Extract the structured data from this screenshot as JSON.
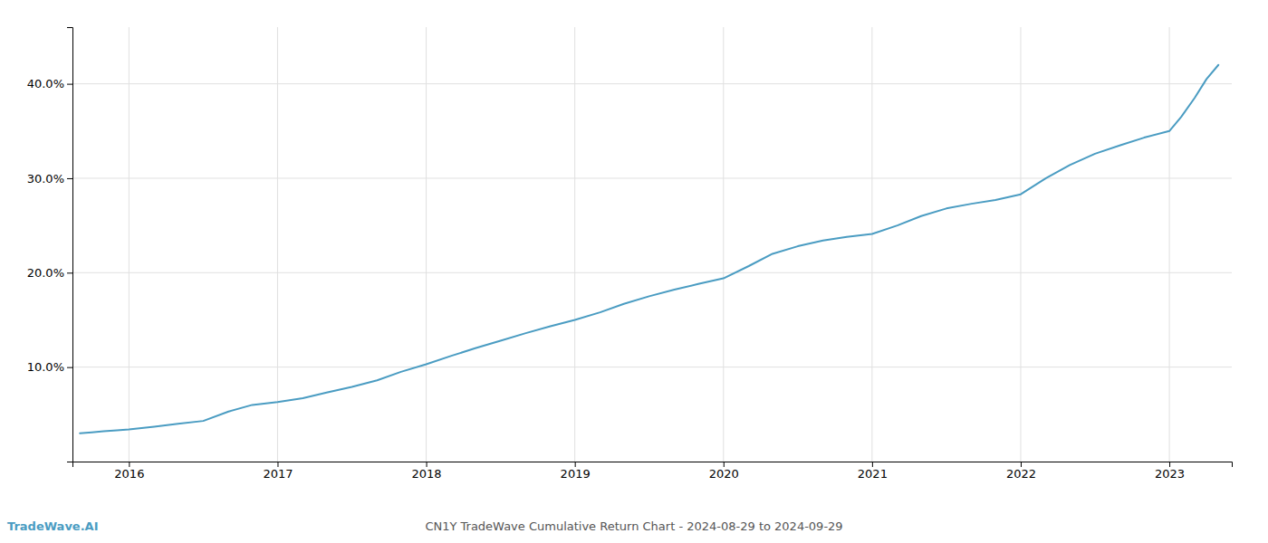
{
  "chart_data": {
    "type": "line",
    "title": "CN1Y TradeWave Cumulative Return Chart - 2024-08-29 to 2024-09-29",
    "annotations": [
      {
        "text": "TradeWave.AI",
        "color": "#4a9cc2"
      }
    ],
    "x": [
      2015.67,
      2015.75,
      2015.83,
      2015.92,
      2016.0,
      2016.17,
      2016.33,
      2016.5,
      2016.67,
      2016.83,
      2017.0,
      2017.17,
      2017.33,
      2017.5,
      2017.67,
      2017.83,
      2018.0,
      2018.17,
      2018.33,
      2018.5,
      2018.67,
      2018.83,
      2019.0,
      2019.17,
      2019.33,
      2019.5,
      2019.67,
      2019.83,
      2020.0,
      2020.17,
      2020.33,
      2020.5,
      2020.67,
      2020.83,
      2021.0,
      2021.17,
      2021.33,
      2021.5,
      2021.67,
      2021.83,
      2022.0,
      2022.17,
      2022.33,
      2022.5,
      2022.67,
      2022.83,
      2023.0,
      2023.08,
      2023.17,
      2023.25,
      2023.33
    ],
    "values": [
      0.03,
      0.031,
      0.032,
      0.033,
      0.034,
      0.037,
      0.04,
      0.043,
      0.053,
      0.06,
      0.063,
      0.067,
      0.073,
      0.079,
      0.086,
      0.095,
      0.103,
      0.112,
      0.12,
      0.128,
      0.136,
      0.143,
      0.15,
      0.158,
      0.167,
      0.175,
      0.182,
      0.188,
      0.194,
      0.207,
      0.22,
      0.228,
      0.234,
      0.238,
      0.241,
      0.25,
      0.26,
      0.268,
      0.273,
      0.277,
      0.283,
      0.3,
      0.314,
      0.326,
      0.335,
      0.343,
      0.35,
      0.365,
      0.385,
      0.405,
      0.42
    ],
    "color": "#4a9cc2",
    "xlim": [
      2015.62,
      2023.42
    ],
    "xticks": [
      2016,
      2017,
      2018,
      2019,
      2020,
      2021,
      2022,
      2023
    ],
    "ylim": [
      0.0,
      0.46
    ],
    "yticks": [
      {
        "value": 0.1,
        "label": "10.0%"
      },
      {
        "value": 0.2,
        "label": "20.0%"
      },
      {
        "value": 0.3,
        "label": "30.0%"
      },
      {
        "value": 0.4,
        "label": "40.0%"
      }
    ],
    "grid": true
  }
}
